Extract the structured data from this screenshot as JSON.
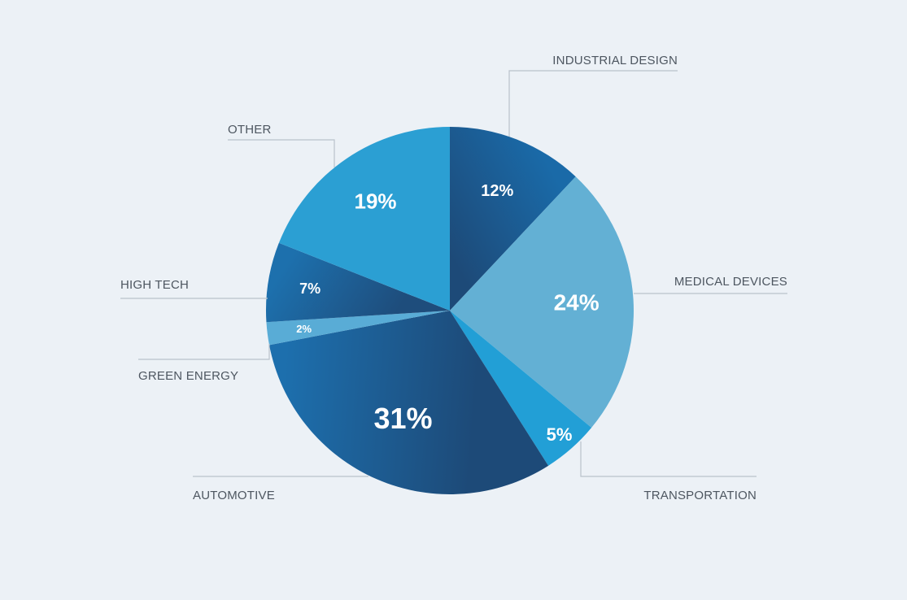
{
  "chart_data": {
    "type": "pie",
    "title": "",
    "legend": "none",
    "slices": [
      {
        "name": "INDUSTRIAL DESIGN",
        "label": "12%",
        "value": 12,
        "color": "#1a6aa8",
        "color_dark": "#1d4a78"
      },
      {
        "name": "MEDICAL DEVICES",
        "label": "24%",
        "value": 24,
        "color": "#63b0d4",
        "color_dark": "#63b0d4"
      },
      {
        "name": "TRANSPORTATION",
        "label": "5%",
        "value": 5,
        "color": "#229fd6",
        "color_dark": "#229fd6"
      },
      {
        "name": "AUTOMOTIVE",
        "label": "31%",
        "value": 31,
        "color": "#1d6fad",
        "color_dark": "#1d4a78"
      },
      {
        "name": "GREEN ENERGY",
        "label": "2%",
        "value": 2,
        "color": "#59acd6",
        "color_dark": "#59acd6"
      },
      {
        "name": "HIGH TECH",
        "label": "7%",
        "value": 7,
        "color": "#1d70ad",
        "color_dark": "#1e4d7c"
      },
      {
        "name": "OTHER",
        "label": "19%",
        "value": 19,
        "color": "#2b9fd3",
        "color_dark": "#2b9fd3"
      }
    ]
  }
}
